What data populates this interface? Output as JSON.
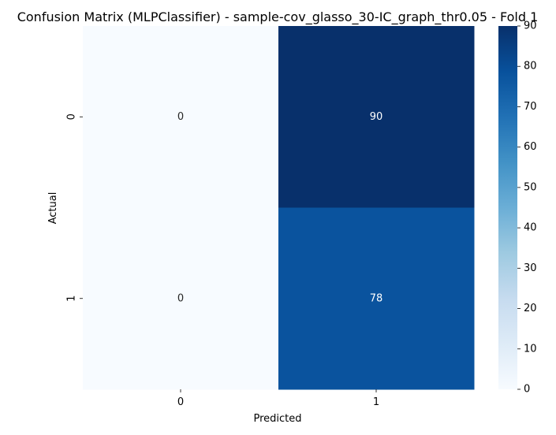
{
  "chart_data": {
    "type": "heatmap",
    "title": "Confusion Matrix (MLPClassifier) - sample-cov_glasso_30-IC_graph_thr0.05 - Fold 1",
    "xlabel": "Predicted",
    "ylabel": "Actual",
    "x_categories": [
      "0",
      "1"
    ],
    "y_categories": [
      "0",
      "1"
    ],
    "values": [
      [
        0,
        90
      ],
      [
        0,
        78
      ]
    ],
    "colormap": "Blues",
    "color_range": [
      0,
      90
    ],
    "colorbar_ticks": [
      "0",
      "10",
      "20",
      "30",
      "40",
      "50",
      "60",
      "70",
      "80",
      "90"
    ],
    "colorbar_placement": "right",
    "grid": false
  }
}
